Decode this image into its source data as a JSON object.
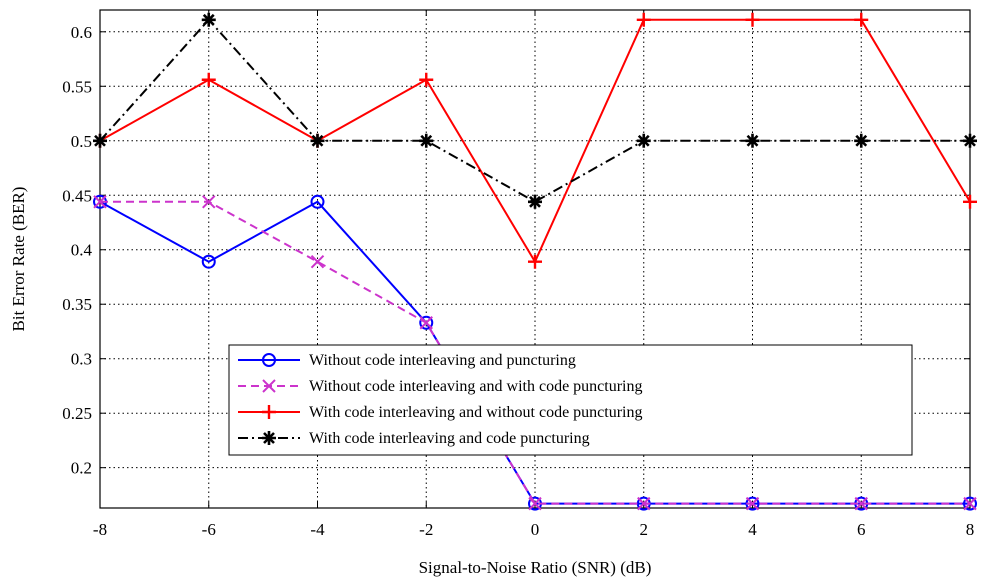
{
  "chart_data": {
    "type": "line",
    "title": "",
    "xlabel": "Signal-to-Noise Ratio (SNR) (dB)",
    "ylabel": "Bit Error Rate (BER)",
    "x": [
      -8,
      -6,
      -4,
      -2,
      0,
      2,
      4,
      6,
      8
    ],
    "xlim": [
      -8,
      8
    ],
    "ylim": [
      0.163,
      0.62
    ],
    "xticks": [
      "-8",
      "-6",
      "-4",
      "-2",
      "0",
      "2",
      "4",
      "6",
      "8"
    ],
    "yticks": [
      "0.2",
      "0.25",
      "0.3",
      "0.35",
      "0.4",
      "0.45",
      "0.5",
      "0.55",
      "0.6"
    ],
    "ytick_values": [
      0.2,
      0.25,
      0.3,
      0.35,
      0.4,
      0.45,
      0.5,
      0.55,
      0.6
    ],
    "grid": true,
    "legend_position": "center",
    "series": [
      {
        "name": "Without code interleaving and puncturing",
        "values": [
          0.444,
          0.389,
          0.444,
          0.333,
          0.167,
          0.167,
          0.167,
          0.167,
          0.167
        ],
        "color": "#0000ff",
        "dash": "solid",
        "marker": "circle"
      },
      {
        "name": "Without code interleaving and with code puncturing",
        "values": [
          0.444,
          0.444,
          0.389,
          0.333,
          0.167,
          0.167,
          0.167,
          0.167,
          0.167
        ],
        "color": "#cc33cc",
        "dash": "dashed",
        "marker": "x"
      },
      {
        "name": "With code interleaving and without code puncturing",
        "values": [
          0.5,
          0.556,
          0.5,
          0.556,
          0.389,
          0.611,
          0.611,
          0.611,
          0.444
        ],
        "color": "#ff0000",
        "dash": "solid",
        "marker": "plus"
      },
      {
        "name": "With code interleaving and code puncturing",
        "values": [
          0.5,
          0.611,
          0.5,
          0.5,
          0.444,
          0.5,
          0.5,
          0.5,
          0.5
        ],
        "color": "#000000",
        "dash": "dashdot",
        "marker": "star"
      }
    ]
  }
}
